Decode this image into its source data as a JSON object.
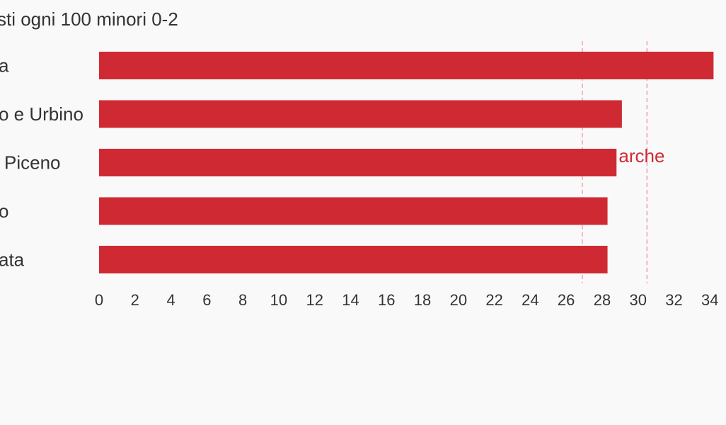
{
  "chart_data": {
    "type": "bar",
    "orientation": "horizontal",
    "title": "sti ogni 100 minori 0-2",
    "categories": [
      "a",
      "o e Urbino",
      "Piceno",
      "o",
      "ata"
    ],
    "values": [
      34.2,
      29.1,
      28.8,
      28.3,
      28.3
    ],
    "xlim": [
      0,
      34.5
    ],
    "x_ticks": [
      "0",
      "2",
      "4",
      "6",
      "8",
      "10",
      "12",
      "14",
      "16",
      "18",
      "20",
      "22",
      "24",
      "26",
      "28",
      "30",
      "32",
      "34"
    ],
    "reference_lines": [
      {
        "value": 26.9,
        "label": "",
        "color": "#f4b6c2"
      },
      {
        "value": 30.5,
        "label": "arche",
        "color": "#f4b6c2"
      }
    ],
    "bar_color": "#cf2a33",
    "reference_label_color": "#cf2a33",
    "background": "#f9f9f9",
    "grid": false,
    "legend": "none"
  }
}
